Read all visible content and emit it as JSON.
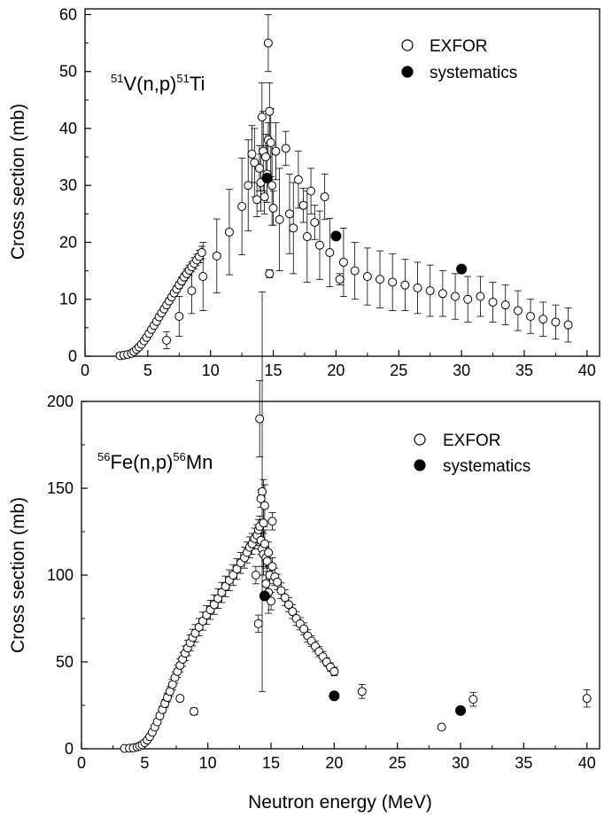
{
  "chart_data": [
    {
      "type": "scatter",
      "reaction": {
        "pre": "51",
        "a": "V(n,p)",
        "mid": "51",
        "b": "Ti"
      },
      "xlabel": "",
      "ylabel": "Cross section (mb)",
      "xlim": [
        0,
        41
      ],
      "ylim": [
        0,
        61
      ],
      "xticks": [
        "0",
        "5",
        "10",
        "15",
        "20",
        "25",
        "30",
        "35",
        "40"
      ],
      "yticks": [
        "0",
        "10",
        "20",
        "30",
        "40",
        "50",
        "60"
      ],
      "legend": {
        "position": "top-right",
        "entries": [
          "EXFOR",
          "systematics"
        ]
      },
      "series": [
        {
          "name": "EXFOR",
          "marker": "open-circle",
          "x": [
            2.8,
            3.1,
            3.4,
            3.7,
            3.9,
            4.1,
            4.3,
            4.5,
            4.7,
            4.9,
            5.1,
            5.3,
            5.5,
            5.7,
            5.9,
            6.1,
            6.3,
            6.5,
            6.7,
            6.9,
            7.1,
            7.3,
            7.5,
            7.7,
            7.9,
            8.1,
            8.3,
            8.5,
            8.7,
            8.9,
            9.1,
            9.3,
            6.5,
            7.5,
            8.5,
            9.4,
            10.5,
            11.5,
            12.5,
            13.0,
            13.3,
            13.5,
            13.7,
            13.9,
            14.0,
            14.1,
            14.2,
            14.3,
            14.4,
            14.5,
            14.6,
            14.7,
            14.8,
            14.9,
            15.0,
            15.2,
            14.6,
            14.7,
            15.5,
            16.0,
            16.3,
            16.6,
            17.0,
            17.4,
            17.7,
            18.0,
            18.3,
            18.7,
            19.1,
            19.5,
            20.3,
            20.6,
            21.5,
            22.5,
            23.5,
            24.5,
            25.5,
            26.5,
            27.5,
            28.5,
            29.5,
            30.5,
            31.5,
            32.5,
            33.5,
            34.5,
            35.5,
            36.5,
            37.5,
            38.5
          ],
          "y": [
            0.1,
            0.2,
            0.3,
            0.5,
            0.8,
            1.2,
            1.6,
            2.1,
            2.7,
            3.3,
            4.0,
            4.7,
            5.4,
            6.1,
            6.9,
            7.6,
            8.3,
            9.0,
            9.7,
            10.4,
            11.1,
            11.8,
            12.5,
            13.2,
            13.9,
            14.5,
            15.1,
            15.7,
            16.3,
            16.9,
            17.5,
            18.2,
            2.8,
            7.0,
            11.5,
            14.0,
            17.6,
            21.8,
            26.3,
            30.0,
            35.5,
            34.0,
            27.5,
            33.0,
            30.5,
            42.0,
            36.0,
            28.0,
            35.0,
            32.0,
            38.0,
            43.0,
            37.5,
            30.0,
            26.0,
            36.0,
            55.0,
            14.5,
            24.0,
            36.5,
            25.0,
            22.5,
            31.0,
            26.5,
            21.0,
            29.0,
            23.5,
            19.5,
            28.0,
            18.2,
            13.5,
            16.5,
            15.0,
            14.0,
            13.5,
            13.0,
            12.5,
            12.0,
            11.5,
            11.0,
            10.5,
            10.0,
            10.5,
            9.5,
            9.0,
            8.0,
            7.0,
            6.5,
            6.0,
            5.5
          ],
          "yerr": [
            0,
            0,
            0,
            0,
            0,
            0,
            0,
            0,
            0,
            0,
            0,
            0,
            0,
            0,
            0,
            0,
            0,
            0,
            0,
            0,
            0.5,
            0.6,
            0.6,
            0.7,
            0.7,
            0.8,
            0.9,
            0.9,
            1.0,
            1.0,
            1.1,
            1.1,
            1.5,
            3.5,
            4.0,
            6.0,
            6.5,
            7.5,
            8.5,
            8.0,
            5.0,
            6.0,
            3.0,
            4.0,
            5.0,
            6.0,
            7.0,
            3.0,
            4.0,
            5.0,
            3.0,
            5.0,
            6.0,
            7.0,
            3.0,
            5.0,
            5.0,
            0.7,
            9.0,
            3.0,
            7.0,
            8.0,
            5.0,
            3.0,
            8.0,
            4.0,
            3.0,
            6.0,
            4.0,
            6.0,
            1.0,
            6.0,
            5.0,
            5.0,
            5.0,
            5.0,
            4.5,
            4.5,
            4.5,
            4.0,
            4.0,
            4.0,
            3.5,
            3.5,
            3.5,
            3.5,
            3.0,
            3.0,
            3.0,
            3.0
          ]
        },
        {
          "name": "systematics",
          "marker": "filled-circle",
          "x": [
            14.5,
            20.0,
            30.0
          ],
          "y": [
            31.3,
            21.1,
            15.3
          ]
        }
      ]
    },
    {
      "type": "scatter",
      "reaction": {
        "pre": "56",
        "a": "Fe(n,p)",
        "mid": "56",
        "b": "Mn"
      },
      "xlabel": "Neutron energy (MeV)",
      "ylabel": "Cross section (mb)",
      "xlim": [
        0,
        41
      ],
      "ylim": [
        0,
        200
      ],
      "xticks": [
        "0",
        "5",
        "10",
        "15",
        "20",
        "25",
        "30",
        "35",
        "40"
      ],
      "yticks": [
        "0",
        "50",
        "100",
        "150",
        "200"
      ],
      "legend": {
        "position": "top-right",
        "entries": [
          "EXFOR",
          "systematics"
        ]
      },
      "series": [
        {
          "name": "EXFOR",
          "marker": "open-circle",
          "x": [
            3.4,
            3.8,
            4.1,
            4.4,
            4.6,
            4.8,
            5.0,
            5.2,
            5.4,
            5.6,
            5.8,
            6.0,
            6.2,
            6.4,
            6.6,
            6.8,
            7.0,
            7.2,
            7.4,
            7.6,
            7.8,
            8.0,
            8.2,
            8.4,
            8.6,
            8.8,
            9.0,
            9.3,
            9.6,
            9.9,
            10.2,
            10.5,
            10.8,
            11.1,
            11.4,
            11.7,
            12.0,
            12.3,
            12.6,
            12.9,
            13.1,
            13.3,
            13.5,
            13.7,
            13.9,
            14.0,
            14.1,
            14.2,
            14.3,
            14.4,
            14.5,
            14.6,
            14.7,
            14.8,
            14.9,
            15.1,
            15.3,
            15.5,
            15.8,
            16.1,
            16.4,
            16.7,
            17.0,
            17.3,
            17.6,
            17.9,
            18.2,
            18.5,
            18.8,
            19.1,
            19.4,
            19.7,
            20.0,
            14.0,
            14.1,
            14.3,
            14.4,
            14.5,
            14.8,
            15.1,
            14.2,
            13.8,
            14.6,
            15.0,
            7.8,
            8.9,
            22.2,
            28.5,
            31.0,
            40.0
          ],
          "y": [
            0.2,
            0.3,
            0.5,
            1.0,
            1.6,
            2.3,
            3.5,
            5.0,
            7.0,
            9.5,
            12.5,
            15.5,
            19.0,
            22.5,
            26.0,
            29.5,
            33.0,
            37.0,
            41.0,
            44.5,
            48.0,
            51.5,
            55.0,
            58.0,
            61.0,
            64.0,
            66.5,
            70.0,
            73.5,
            77.0,
            80.0,
            83.0,
            86.5,
            90.0,
            93.5,
            97.0,
            100.0,
            103.5,
            107.0,
            110.0,
            113.0,
            116.0,
            118.0,
            121.0,
            123.0,
            126.0,
            128.0,
            120.0,
            115.0,
            112.0,
            118.0,
            110.0,
            108.0,
            113.0,
            100.0,
            105.0,
            99.0,
            96.0,
            91.0,
            87.0,
            83.0,
            79.0,
            75.0,
            72.0,
            69.0,
            65.0,
            62.0,
            59.0,
            56.0,
            53.0,
            50.0,
            47.0,
            44.5,
            72.0,
            190.0,
            148.0,
            130.0,
            140.0,
            90.0,
            131.0,
            144.0,
            100.0,
            95.0,
            85.0,
            29.0,
            21.5,
            33.0,
            12.5,
            28.5,
            29.0
          ],
          "yerr": [
            0,
            0,
            0,
            0,
            0,
            0,
            0.5,
            0.6,
            0.8,
            1.0,
            1.2,
            1.5,
            1.8,
            2.0,
            2.3,
            2.5,
            2.8,
            3.0,
            3.2,
            3.5,
            3.7,
            4.0,
            4.2,
            4.4,
            4.6,
            4.8,
            5.0,
            5.0,
            5.2,
            5.4,
            5.5,
            5.6,
            5.7,
            5.8,
            5.9,
            6.0,
            6.0,
            6.0,
            6.0,
            6.0,
            6.0,
            6.0,
            6.0,
            6.0,
            6.0,
            6.0,
            6.0,
            8.0,
            10.0,
            12.0,
            8.0,
            6.0,
            6.0,
            6.0,
            5.0,
            5.0,
            5.0,
            4.5,
            4.5,
            4.5,
            4.0,
            4.0,
            4.0,
            3.5,
            3.5,
            3.5,
            3.0,
            3.0,
            3.0,
            3.0,
            2.5,
            2.5,
            2.5,
            5.0,
            22.0,
            115.0,
            25.0,
            12.0,
            12.0,
            5.0,
            5.0,
            5.0,
            5.0,
            5.0,
            1.5,
            2.0,
            4.0,
            0.5,
            4.0,
            5.0
          ]
        },
        {
          "name": "systematics",
          "marker": "filled-circle",
          "x": [
            14.5,
            20.0,
            30.0
          ],
          "y": [
            88.0,
            30.5,
            22.0
          ]
        }
      ]
    }
  ]
}
